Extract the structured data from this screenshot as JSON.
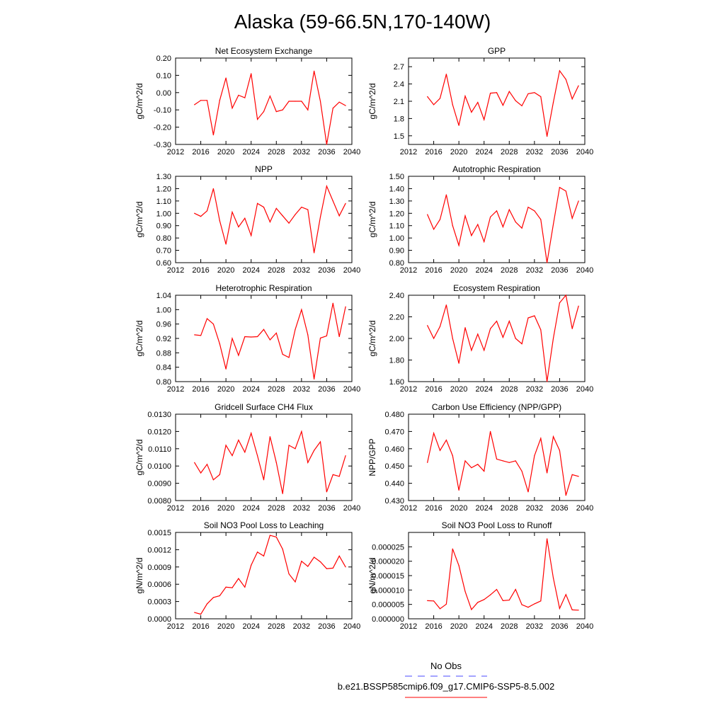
{
  "title": "Alaska (59-66.5N,170-140W)",
  "colors": {
    "series": "#ff0000",
    "obs": "#4a4aff",
    "axis": "#000000"
  },
  "legend": {
    "obs_label": "No Obs",
    "model_label": "b.e21.BSSP585cmip6.f09_g17.CMIP6-SSP5-8.5.002"
  },
  "chart_data": [
    {
      "type": "line",
      "title": "Net Ecosystem Exchange",
      "ylabel": "gC/m^2/d",
      "xlim": [
        2012,
        2040
      ],
      "xticks": [
        "2012",
        "2016",
        "2020",
        "2024",
        "2028",
        "2032",
        "2036",
        "2040"
      ],
      "ylim": [
        -0.3,
        0.2
      ],
      "yticks": [
        "-0.30",
        "-0.20",
        "-0.10",
        "0.00",
        "0.10",
        "0.20"
      ],
      "x": [
        2015,
        2016,
        2017,
        2018,
        2019,
        2020,
        2021,
        2022,
        2023,
        2024,
        2025,
        2026,
        2027,
        2028,
        2029,
        2030,
        2031,
        2032,
        2033,
        2034,
        2035,
        2036,
        2037,
        2038,
        2039
      ],
      "values": [
        -0.07,
        -0.045,
        -0.045,
        -0.245,
        -0.045,
        0.085,
        -0.09,
        -0.015,
        -0.03,
        0.11,
        -0.155,
        -0.11,
        -0.02,
        -0.11,
        -0.1,
        -0.05,
        -0.05,
        -0.05,
        -0.1,
        0.125,
        -0.05,
        -0.3,
        -0.09,
        -0.055,
        -0.075
      ]
    },
    {
      "type": "line",
      "title": "GPP",
      "ylabel": "gC/m^2/d",
      "xlim": [
        2012,
        2040
      ],
      "xticks": [
        "2012",
        "2016",
        "2020",
        "2024",
        "2028",
        "2032",
        "2036",
        "2040"
      ],
      "ylim": [
        1.35,
        2.85
      ],
      "yticks": [
        "1.5",
        "1.8",
        "2.1",
        "2.4",
        "2.7"
      ],
      "x": [
        2015,
        2016,
        2017,
        2018,
        2019,
        2020,
        2021,
        2022,
        2023,
        2024,
        2025,
        2026,
        2027,
        2028,
        2029,
        2030,
        2031,
        2032,
        2033,
        2034,
        2035,
        2036,
        2037,
        2038,
        2039
      ],
      "values": [
        2.18,
        2.04,
        2.15,
        2.57,
        2.04,
        1.68,
        2.19,
        1.91,
        2.08,
        1.78,
        2.24,
        2.25,
        2.03,
        2.27,
        2.11,
        2.02,
        2.23,
        2.25,
        2.18,
        1.49,
        2.08,
        2.63,
        2.48,
        2.14,
        2.37
      ]
    },
    {
      "type": "line",
      "title": "NPP",
      "ylabel": "gC/m^2/d",
      "xlim": [
        2012,
        2040
      ],
      "xticks": [
        "2012",
        "2016",
        "2020",
        "2024",
        "2028",
        "2032",
        "2036",
        "2040"
      ],
      "ylim": [
        0.6,
        1.3
      ],
      "yticks": [
        "0.60",
        "0.70",
        "0.80",
        "0.90",
        "1.00",
        "1.10",
        "1.20",
        "1.30"
      ],
      "x": [
        2015,
        2016,
        2017,
        2018,
        2019,
        2020,
        2021,
        2022,
        2023,
        2024,
        2025,
        2026,
        2027,
        2028,
        2029,
        2030,
        2031,
        2032,
        2033,
        2034,
        2035,
        2036,
        2037,
        2038,
        2039
      ],
      "values": [
        1.0,
        0.975,
        1.02,
        1.2,
        0.94,
        0.75,
        1.01,
        0.89,
        0.96,
        0.82,
        1.08,
        1.05,
        0.93,
        1.04,
        0.98,
        0.92,
        0.99,
        1.05,
        1.03,
        0.68,
        0.97,
        1.22,
        1.1,
        0.98,
        1.08
      ]
    },
    {
      "type": "line",
      "title": "Autotrophic Respiration",
      "ylabel": "gC/m^2/d",
      "xlim": [
        2012,
        2040
      ],
      "xticks": [
        "2012",
        "2016",
        "2020",
        "2024",
        "2028",
        "2032",
        "2036",
        "2040"
      ],
      "ylim": [
        0.8,
        1.5
      ],
      "yticks": [
        "0.80",
        "0.90",
        "1.00",
        "1.10",
        "1.20",
        "1.30",
        "1.40",
        "1.50"
      ],
      "x": [
        2015,
        2016,
        2017,
        2018,
        2019,
        2020,
        2021,
        2022,
        2023,
        2024,
        2025,
        2026,
        2027,
        2028,
        2029,
        2030,
        2031,
        2032,
        2033,
        2034,
        2035,
        2036,
        2037,
        2038,
        2039
      ],
      "values": [
        1.19,
        1.07,
        1.15,
        1.35,
        1.1,
        0.94,
        1.18,
        1.02,
        1.11,
        0.97,
        1.17,
        1.22,
        1.09,
        1.23,
        1.13,
        1.08,
        1.25,
        1.22,
        1.15,
        0.8,
        1.11,
        1.41,
        1.38,
        1.16,
        1.3
      ]
    },
    {
      "type": "line",
      "title": "Heterotrophic Respiration",
      "ylabel": "gC/m^2/d",
      "xlim": [
        2012,
        2040
      ],
      "xticks": [
        "2012",
        "2016",
        "2020",
        "2024",
        "2028",
        "2032",
        "2036",
        "2040"
      ],
      "ylim": [
        0.8,
        1.04
      ],
      "yticks": [
        "0.80",
        "0.84",
        "0.88",
        "0.92",
        "0.96",
        "1.00",
        "1.04"
      ],
      "x": [
        2015,
        2016,
        2017,
        2018,
        2019,
        2020,
        2021,
        2022,
        2023,
        2024,
        2025,
        2026,
        2027,
        2028,
        2029,
        2030,
        2031,
        2032,
        2033,
        2034,
        2035,
        2036,
        2037,
        2038,
        2039
      ],
      "values": [
        0.93,
        0.928,
        0.975,
        0.96,
        0.905,
        0.835,
        0.92,
        0.873,
        0.925,
        0.924,
        0.925,
        0.945,
        0.916,
        0.935,
        0.876,
        0.867,
        0.945,
        1.0,
        0.93,
        0.807,
        0.921,
        0.927,
        1.018,
        0.925,
        1.008
      ]
    },
    {
      "type": "line",
      "title": "Ecosystem Respiration",
      "ylabel": "gC/m^2/d",
      "xlim": [
        2012,
        2040
      ],
      "xticks": [
        "2012",
        "2016",
        "2020",
        "2024",
        "2028",
        "2032",
        "2036",
        "2040"
      ],
      "ylim": [
        1.6,
        2.4
      ],
      "yticks": [
        "1.60",
        "1.80",
        "2.00",
        "2.20",
        "2.40"
      ],
      "x": [
        2015,
        2016,
        2017,
        2018,
        2019,
        2020,
        2021,
        2022,
        2023,
        2024,
        2025,
        2026,
        2027,
        2028,
        2029,
        2030,
        2031,
        2032,
        2033,
        2034,
        2035,
        2036,
        2037,
        2038,
        2039
      ],
      "values": [
        2.12,
        2.0,
        2.11,
        2.31,
        2.0,
        1.77,
        2.1,
        1.89,
        2.04,
        1.89,
        2.09,
        2.16,
        2.01,
        2.16,
        2.0,
        1.95,
        2.19,
        2.21,
        2.08,
        1.6,
        2.0,
        2.33,
        2.4,
        2.09,
        2.3
      ]
    },
    {
      "type": "line",
      "title": "Gridcell Surface CH4 Flux",
      "ylabel": "gC/m^2/d",
      "xlim": [
        2012,
        2040
      ],
      "xticks": [
        "2012",
        "2016",
        "2020",
        "2024",
        "2028",
        "2032",
        "2036",
        "2040"
      ],
      "ylim": [
        0.008,
        0.013
      ],
      "yticks": [
        "0.0080",
        "0.0090",
        "0.0100",
        "0.0110",
        "0.0120",
        "0.0130"
      ],
      "x": [
        2015,
        2016,
        2017,
        2018,
        2019,
        2020,
        2021,
        2022,
        2023,
        2024,
        2025,
        2026,
        2027,
        2028,
        2029,
        2030,
        2031,
        2032,
        2033,
        2034,
        2035,
        2036,
        2037,
        2038,
        2039
      ],
      "values": [
        0.0102,
        0.0096,
        0.0101,
        0.0092,
        0.0095,
        0.0112,
        0.0106,
        0.0115,
        0.0108,
        0.0119,
        0.0106,
        0.0092,
        0.0117,
        0.0102,
        0.0084,
        0.0112,
        0.011,
        0.012,
        0.0102,
        0.0109,
        0.0114,
        0.0085,
        0.0095,
        0.0094,
        0.0106
      ]
    },
    {
      "type": "line",
      "title": "Carbon Use Efficiency (NPP/GPP)",
      "ylabel": "NPP/GPP",
      "xlim": [
        2012,
        2040
      ],
      "xticks": [
        "2012",
        "2016",
        "2020",
        "2024",
        "2028",
        "2032",
        "2036",
        "2040"
      ],
      "ylim": [
        0.43,
        0.48
      ],
      "yticks": [
        "0.430",
        "0.440",
        "0.450",
        "0.460",
        "0.470",
        "0.480"
      ],
      "x": [
        2015,
        2016,
        2017,
        2018,
        2019,
        2020,
        2021,
        2022,
        2023,
        2024,
        2025,
        2026,
        2027,
        2028,
        2029,
        2030,
        2031,
        2032,
        2033,
        2034,
        2035,
        2036,
        2037,
        2038,
        2039
      ],
      "values": [
        0.452,
        0.469,
        0.459,
        0.465,
        0.456,
        0.436,
        0.453,
        0.449,
        0.451,
        0.447,
        0.47,
        0.454,
        0.453,
        0.452,
        0.453,
        0.447,
        0.435,
        0.456,
        0.466,
        0.446,
        0.467,
        0.459,
        0.433,
        0.445,
        0.444
      ]
    },
    {
      "type": "line",
      "title": "Soil NO3 Pool Loss to Leaching",
      "ylabel": "gN/m^2/d",
      "xlim": [
        2012,
        2040
      ],
      "xticks": [
        "2012",
        "2016",
        "2020",
        "2024",
        "2028",
        "2032",
        "2036",
        "2040"
      ],
      "ylim": [
        0.0,
        0.0015
      ],
      "yticks": [
        "0.0000",
        "0.0003",
        "0.0006",
        "0.0009",
        "0.0012",
        "0.0015"
      ],
      "x": [
        2015,
        2016,
        2017,
        2018,
        2019,
        2020,
        2021,
        2022,
        2023,
        2024,
        2025,
        2026,
        2027,
        2028,
        2029,
        2030,
        2031,
        2032,
        2033,
        2034,
        2035,
        2036,
        2037,
        2038,
        2039
      ],
      "values": [
        0.00011,
        8e-05,
        0.00026,
        0.00037,
        0.0004,
        0.00055,
        0.00054,
        0.0007,
        0.00055,
        0.00093,
        0.00116,
        0.00109,
        0.00145,
        0.00142,
        0.00121,
        0.00078,
        0.00064,
        0.001,
        0.00091,
        0.00107,
        0.00099,
        0.00087,
        0.00088,
        0.00109,
        0.0009
      ]
    },
    {
      "type": "line",
      "title": "Soil NO3 Pool Loss to Runoff",
      "ylabel": "gN/m^2/d",
      "xlim": [
        2012,
        2040
      ],
      "xticks": [
        "2012",
        "2016",
        "2020",
        "2024",
        "2028",
        "2032",
        "2036",
        "2040"
      ],
      "ylim": [
        0.0,
        3e-05
      ],
      "yticks": [
        "0.000000",
        "0.000005",
        "0.000010",
        "0.000015",
        "0.000020",
        "0.000025"
      ],
      "x": [
        2015,
        2016,
        2017,
        2018,
        2019,
        2020,
        2021,
        2022,
        2023,
        2024,
        2025,
        2026,
        2027,
        2028,
        2029,
        2030,
        2031,
        2032,
        2033,
        2034,
        2035,
        2036,
        2037,
        2038,
        2039
      ],
      "values": [
        6.3e-06,
        6.2e-06,
        3.5e-06,
        5.1e-06,
        2.43e-05,
        1.85e-05,
        9.5e-06,
        3.2e-06,
        5.7e-06,
        6.7e-06,
        8.3e-06,
        1.02e-05,
        6.3e-06,
        6.5e-06,
        1.02e-05,
        4.9e-06,
        4e-06,
        5.2e-06,
        6.2e-06,
        2.78e-05,
        1.42e-05,
        3.6e-06,
        8.4e-06,
        3.1e-06,
        3e-06
      ]
    }
  ]
}
